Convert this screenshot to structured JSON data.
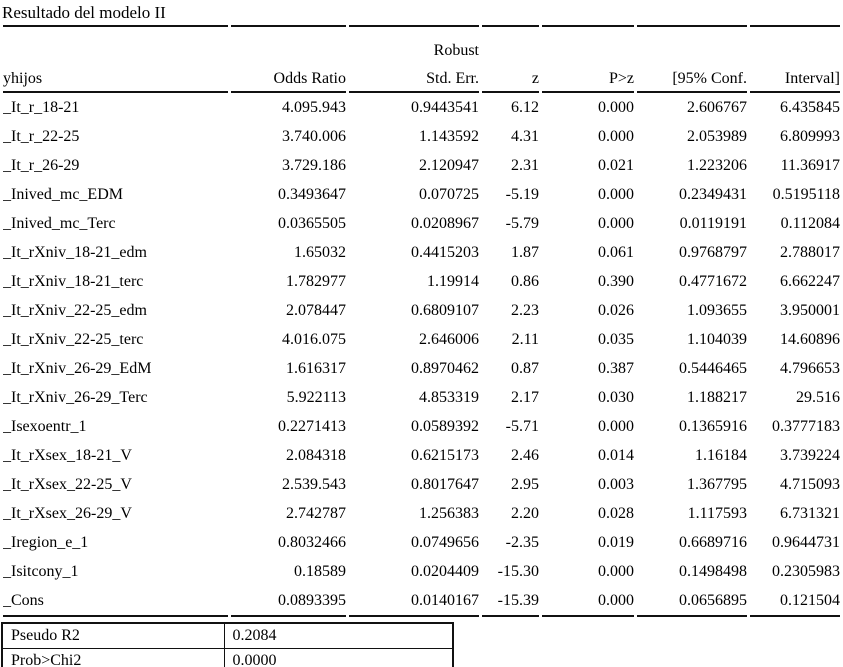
{
  "title": "Resultado del modelo II",
  "table": {
    "header": {
      "robust": "Robust",
      "columns": [
        "yhijos",
        "Odds Ratio",
        "Std. Err.",
        "z",
        "P>z",
        "[95% Conf.",
        "Interval]"
      ]
    },
    "rows": [
      [
        "_It_r_18-21",
        "4.095.943",
        "0.9443541",
        "6.12",
        "0.000",
        "2.606767",
        "6.435845"
      ],
      [
        "_It_r_22-25",
        "3.740.006",
        "1.143592",
        "4.31",
        "0.000",
        "2.053989",
        "6.809993"
      ],
      [
        "_It_r_26-29",
        "3.729.186",
        "2.120947",
        "2.31",
        "0.021",
        "1.223206",
        "11.36917"
      ],
      [
        "_Inived_mc_EDM",
        "0.3493647",
        "0.070725",
        "-5.19",
        "0.000",
        "0.2349431",
        "0.5195118"
      ],
      [
        "_Inived_mc_Terc",
        "0.0365505",
        "0.0208967",
        "-5.79",
        "0.000",
        "0.0119191",
        "0.112084"
      ],
      [
        "_It_rXniv_18-21_edm",
        "1.65032",
        "0.4415203",
        "1.87",
        "0.061",
        "0.9768797",
        "2.788017"
      ],
      [
        "_It_rXniv_18-21_terc",
        "1.782977",
        "1.19914",
        "0.86",
        "0.390",
        "0.4771672",
        "6.662247"
      ],
      [
        "_It_rXniv_22-25_edm",
        "2.078447",
        "0.6809107",
        "2.23",
        "0.026",
        "1.093655",
        "3.950001"
      ],
      [
        "_It_rXniv_22-25_terc",
        "4.016.075",
        "2.646006",
        "2.11",
        "0.035",
        "1.104039",
        "14.60896"
      ],
      [
        "_It_rXniv_26-29_EdM",
        "1.616317",
        "0.8970462",
        "0.87",
        "0.387",
        "0.5446465",
        "4.796653"
      ],
      [
        "_It_rXniv_26-29_Terc",
        "5.922113",
        "4.853319",
        "2.17",
        "0.030",
        "1.188217",
        "29.516"
      ],
      [
        "_Isexoentr_1",
        "0.2271413",
        "0.0589392",
        "-5.71",
        "0.000",
        "0.1365916",
        "0.3777183"
      ],
      [
        "_It_rXsex_18-21_V",
        "2.084318",
        "0.6215173",
        "2.46",
        "0.014",
        "1.16184",
        "3.739224"
      ],
      [
        "_It_rXsex_22-25_V",
        "2.539.543",
        "0.8017647",
        "2.95",
        "0.003",
        "1.367795",
        "4.715093"
      ],
      [
        "_It_rXsex_26-29_V",
        "2.742787",
        "1.256383",
        "2.20",
        "0.028",
        "1.117593",
        "6.731321"
      ],
      [
        "_Iregion_e_1",
        "0.8032466",
        "0.0749656",
        "-2.35",
        "0.019",
        "0.6689716",
        "0.9644731"
      ],
      [
        "_Isitcony_1",
        "0.18589",
        "0.0204409",
        "-15.30",
        "0.000",
        "0.1498498",
        "0.2305983"
      ],
      [
        "_Cons",
        "0.0893395",
        "0.0140167",
        "-15.39",
        "0.000",
        "0.0656895",
        "0.121504"
      ]
    ]
  },
  "summary": {
    "rows": [
      {
        "label": "Pseudo R2",
        "value": "0.2084"
      },
      {
        "label": "Prob>Chi2",
        "value": "0.0000"
      }
    ]
  }
}
